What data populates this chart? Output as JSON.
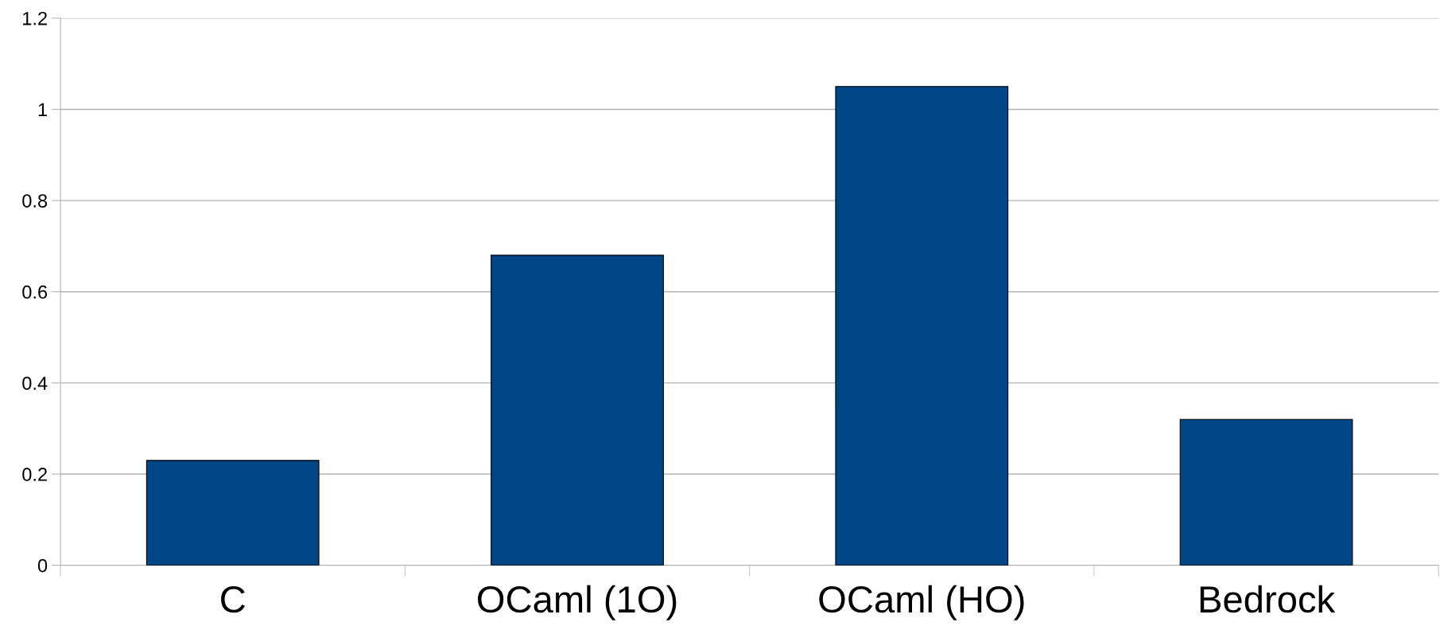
{
  "chart_data": {
    "type": "bar",
    "categories": [
      "C",
      "OCaml (1O)",
      "OCaml (HO)",
      "Bedrock"
    ],
    "values": [
      0.23,
      0.68,
      1.05,
      0.32
    ],
    "color": "#004586",
    "ylim": [
      0,
      1.2
    ],
    "yticks": [
      0,
      0.2,
      0.4,
      0.6,
      0.8,
      1,
      1.2
    ],
    "grid": "y",
    "legend": false
  }
}
